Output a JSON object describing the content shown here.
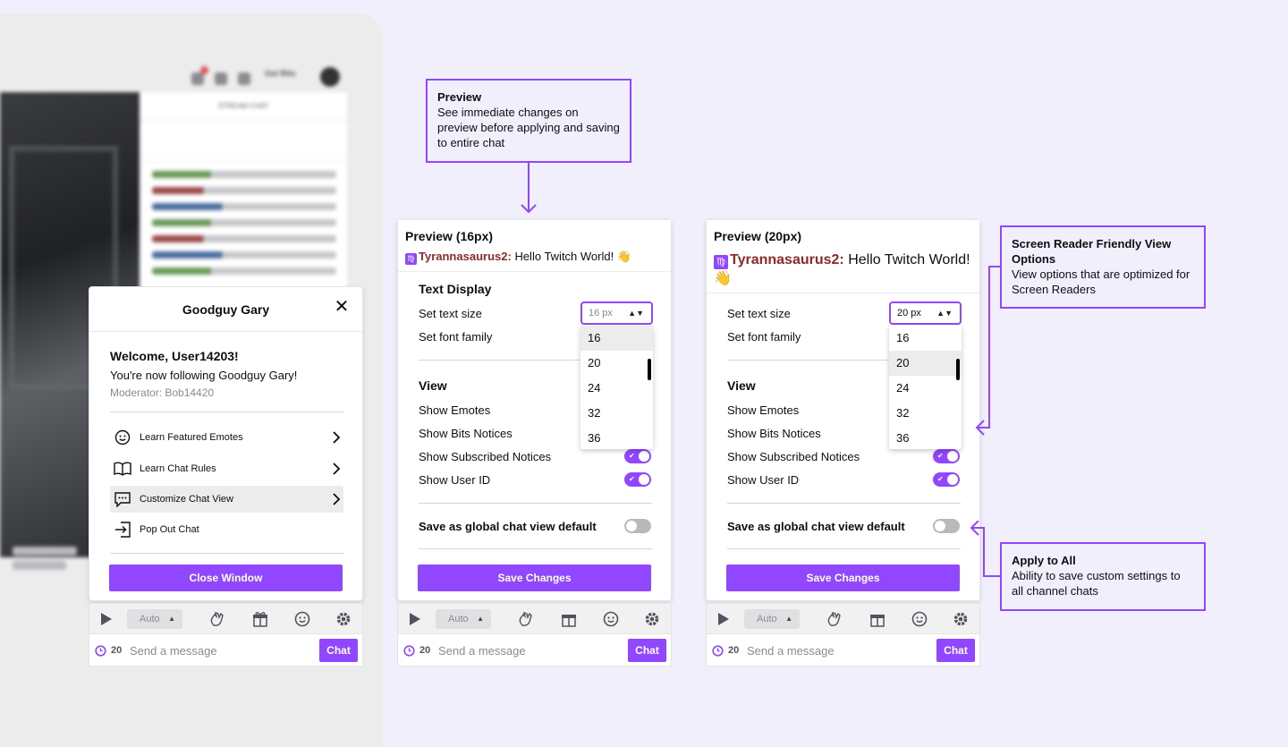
{
  "background": {
    "canvas": "#f1effc",
    "frame": "#ececed",
    "accent": "#9147ff"
  },
  "stream_bg": {
    "topbar_get_bits": "Get Bits",
    "chat_header": "STREAM CHAT"
  },
  "user_card": {
    "title": "Goodguy Gary",
    "close_icon": "close-icon",
    "welcome": "Welcome, User14203!",
    "following": "You're now following Goodguy Gary!",
    "moderator": "Moderator: Bob14420",
    "items": [
      {
        "label": "Learn Featured Emotes",
        "icon": "smiley-icon",
        "chevron": true
      },
      {
        "label": "Learn Chat Rules",
        "icon": "book-icon",
        "chevron": true
      },
      {
        "label": "Customize Chat View",
        "icon": "chat-bubble-icon",
        "chevron": true,
        "active": true
      },
      {
        "label": "Pop Out Chat",
        "icon": "popout-icon",
        "chevron": false
      }
    ],
    "close_button": "Close Window"
  },
  "chat_controls": {
    "auto_label": "Auto",
    "icons": [
      "play-icon",
      "wave-icon",
      "gift-icon",
      "emote-icon",
      "settings-icon"
    ],
    "count": "20",
    "placeholder": "Send a message",
    "chat_button": "Chat"
  },
  "preview_small": {
    "title": "Preview (16px)",
    "username": "Tyrannasaurus2",
    "message": "Hello Twitch World! 👋",
    "section_text": "Text Display",
    "set_text_size": "Set text size",
    "select_value": "16 px",
    "set_font_family": "Set font family",
    "options": [
      "16",
      "20",
      "24",
      "32",
      "36"
    ],
    "highlighted_option": "16",
    "section_view": "View",
    "show_emotes": "Show Emotes",
    "show_bits": "Show Bits Notices",
    "show_subscribed": "Show Subscribed Notices",
    "show_user_id": "Show User ID",
    "save_global": "Save as global chat view default",
    "save_changes": "Save Changes",
    "toggles": {
      "show_subscribed": true,
      "show_user_id": true,
      "save_global": false
    }
  },
  "preview_large": {
    "title": "Preview (20px)",
    "username": "Tyrannasaurus2",
    "message": "Hello Twitch World! 👋",
    "set_text_size": "Set text size",
    "select_value": "20 px",
    "set_font_family": "Set font family",
    "options": [
      "16",
      "20",
      "24",
      "32",
      "36"
    ],
    "highlighted_option": "20",
    "section_view": "View",
    "show_emotes": "Show Emotes",
    "show_bits": "Show Bits Notices",
    "show_subscribed": "Show Subscribed Notices",
    "show_user_id": "Show User ID",
    "save_global": "Save as global chat view default",
    "save_changes": "Save Changes",
    "toggles": {
      "show_subscribed": true,
      "show_user_id": true,
      "save_global": false
    }
  },
  "annotations": {
    "preview": {
      "title": "Preview",
      "body": "See immediate changes on preview before applying and saving to entire chat"
    },
    "screen_reader": {
      "title": "Screen Reader Friendly View Options",
      "body": "View options that are optimized for Screen Readers"
    },
    "apply_all": {
      "title": "Apply to All",
      "body": "Ability to save custom settings to all channel chats"
    }
  }
}
